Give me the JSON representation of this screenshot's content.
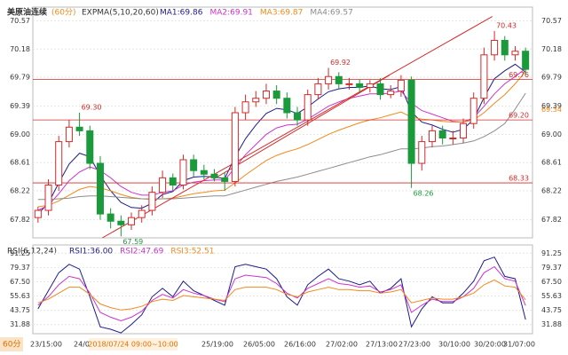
{
  "chart_data": [
    {
      "type": "candlestick",
      "title": "美原油连续",
      "subtitle": "(60分)",
      "indicator": "EXPMA(5,10,20,60)",
      "up_color": "#d42a2a",
      "down_color": "#1a9a3a",
      "open": [
        67.85,
        67.95,
        68.3,
        68.9,
        69.1,
        69.05,
        68.6,
        67.9,
        67.8,
        67.75,
        67.85,
        67.95,
        68.2,
        68.4,
        68.3,
        68.65,
        68.5,
        68.45,
        68.4,
        68.35,
        69.3,
        69.45,
        69.5,
        69.6,
        69.5,
        69.3,
        69.2,
        69.55,
        69.7,
        69.8,
        69.7,
        69.7,
        69.65,
        69.7,
        69.55,
        69.6,
        69.75,
        68.6,
        68.9,
        69.05,
        68.95,
        68.95,
        69.15,
        69.5,
        70.1,
        70.3,
        70.1,
        70.15
      ],
      "high": [
        68.0,
        68.38,
        68.98,
        69.2,
        69.3,
        69.12,
        68.7,
        67.98,
        67.88,
        67.92,
        68.02,
        68.28,
        68.5,
        68.46,
        68.72,
        68.72,
        68.58,
        68.52,
        68.48,
        69.38,
        69.55,
        69.6,
        69.7,
        69.68,
        69.58,
        69.38,
        69.62,
        69.78,
        69.92,
        69.86,
        69.78,
        69.76,
        69.75,
        69.78,
        69.68,
        69.82,
        69.8,
        68.98,
        69.12,
        69.12,
        69.05,
        69.22,
        69.58,
        70.2,
        70.43,
        70.36,
        70.22,
        70.2
      ],
      "low": [
        67.78,
        67.88,
        68.22,
        68.82,
        68.98,
        68.52,
        67.82,
        67.7,
        67.59,
        67.68,
        67.78,
        67.88,
        68.12,
        68.22,
        68.24,
        68.42,
        68.38,
        68.35,
        68.22,
        68.28,
        69.2,
        69.38,
        69.42,
        69.42,
        69.22,
        69.12,
        69.12,
        69.48,
        69.62,
        69.62,
        69.62,
        69.58,
        69.58,
        69.48,
        69.5,
        69.52,
        68.26,
        68.5,
        68.82,
        68.86,
        68.86,
        68.88,
        69.08,
        69.42,
        70.02,
        70.02,
        70.02,
        69.82
      ],
      "close": [
        67.95,
        68.3,
        68.9,
        69.1,
        69.05,
        68.6,
        67.9,
        67.8,
        67.75,
        67.85,
        67.95,
        68.2,
        68.4,
        68.3,
        68.65,
        68.5,
        68.45,
        68.4,
        68.35,
        69.3,
        69.45,
        69.5,
        69.6,
        69.5,
        69.3,
        69.2,
        69.55,
        69.7,
        69.8,
        69.7,
        69.7,
        69.65,
        69.7,
        69.55,
        69.6,
        69.75,
        68.6,
        68.9,
        69.05,
        68.95,
        68.95,
        69.15,
        69.5,
        70.1,
        70.3,
        70.1,
        70.15,
        69.9
      ],
      "series": [
        {
          "name": "MA1:69.86",
          "color": "#1c1c8c",
          "values": [
            67.9,
            68.05,
            68.33,
            68.59,
            68.74,
            68.69,
            68.43,
            68.22,
            68.06,
            67.99,
            67.98,
            68.05,
            68.17,
            68.21,
            68.36,
            68.41,
            68.42,
            68.41,
            68.39,
            68.69,
            68.94,
            69.13,
            69.29,
            69.36,
            69.34,
            69.29,
            69.38,
            69.49,
            69.59,
            69.63,
            69.65,
            69.65,
            69.67,
            69.63,
            69.62,
            69.66,
            69.31,
            69.17,
            69.13,
            69.07,
            69.03,
            69.07,
            69.21,
            69.51,
            69.77,
            69.88,
            69.97,
            69.86
          ]
        },
        {
          "name": "MA2:69.91",
          "color": "#cc33cc",
          "values": [
            67.95,
            68.02,
            68.18,
            68.36,
            68.48,
            68.55,
            68.5,
            68.4,
            68.28,
            68.2,
            68.16,
            68.16,
            68.2,
            68.22,
            68.3,
            68.34,
            68.36,
            68.37,
            68.37,
            68.54,
            68.72,
            68.86,
            69.0,
            69.09,
            69.13,
            69.14,
            69.21,
            69.3,
            69.39,
            69.45,
            69.5,
            69.53,
            69.56,
            69.56,
            69.57,
            69.6,
            69.43,
            69.33,
            69.28,
            69.23,
            69.18,
            69.17,
            69.23,
            69.39,
            69.56,
            69.7,
            69.8,
            69.91
          ]
        },
        {
          "name": "MA3:69.87",
          "color": "#f08a1c",
          "values": [
            68.0,
            68.02,
            68.08,
            68.16,
            68.24,
            68.28,
            68.26,
            68.22,
            68.17,
            68.13,
            68.11,
            68.1,
            68.11,
            68.12,
            68.15,
            68.18,
            68.2,
            68.22,
            68.23,
            68.33,
            68.44,
            68.54,
            68.64,
            68.71,
            68.76,
            68.8,
            68.86,
            68.93,
            69.0,
            69.06,
            69.11,
            69.16,
            69.2,
            69.23,
            69.27,
            69.31,
            69.24,
            69.21,
            69.2,
            69.18,
            69.17,
            69.17,
            69.2,
            69.3,
            69.43,
            69.55,
            69.7,
            69.87
          ]
        },
        {
          "name": "MA4:69.57",
          "color": "#8c8c8c",
          "values": [
            68.1,
            68.1,
            68.11,
            68.12,
            68.14,
            68.15,
            68.15,
            68.14,
            68.13,
            68.12,
            68.11,
            68.11,
            68.11,
            68.11,
            68.12,
            68.13,
            68.14,
            68.15,
            68.15,
            68.19,
            68.23,
            68.27,
            68.31,
            68.35,
            68.38,
            68.41,
            68.45,
            68.49,
            68.53,
            68.57,
            68.61,
            68.65,
            68.69,
            68.72,
            68.76,
            68.8,
            68.8,
            68.81,
            68.83,
            68.84,
            68.86,
            68.88,
            68.91,
            68.97,
            69.05,
            69.15,
            69.35,
            69.57
          ]
        }
      ],
      "annotations": [
        {
          "index": 4,
          "value": 69.3,
          "label": "69.30"
        },
        {
          "index": 8,
          "value": 67.59,
          "label": "67.59"
        },
        {
          "index": 28,
          "value": 69.92,
          "label": "69.92"
        },
        {
          "index": 36,
          "value": 68.26,
          "label": "68.26"
        },
        {
          "index": 44,
          "value": 70.43,
          "label": "70.43"
        }
      ],
      "hlines": [
        {
          "value": 69.76,
          "label": "69.76",
          "color": "#d42a2a"
        },
        {
          "value": 69.2,
          "label": "69.20",
          "color": "#d42a2a"
        },
        {
          "value": 68.33,
          "label": "68.33",
          "color": "#d42a2a"
        }
      ],
      "tags": [
        {
          "value": 69.34,
          "label": "69.34",
          "color": "#f08a1c"
        }
      ],
      "trendlines": [
        {
          "from": [
            6.2,
            67.57
          ],
          "to": [
            43.8,
            70.63
          ],
          "color": "#d42a2a"
        },
        {
          "from": [
            16.9,
            68.38
          ],
          "to": [
            33.9,
            69.82
          ],
          "color": "#d42a2a"
        }
      ],
      "ylim": [
        67.57,
        70.76
      ],
      "yticks": [
        70.57,
        70.18,
        69.79,
        69.39,
        {
          "value": 69,
          "label": "69.00"
        },
        68.61,
        68.22,
        67.82
      ],
      "x_labels": [
        "23/15:00",
        "24/01:00",
        "2018/07/24 09:00~10:00",
        "25/19:00",
        "26/05:00",
        "26/16:00",
        "27/02:00",
        "27/13:00",
        "27/23:00",
        "30/10:00",
        "30/20:00",
        "31/07:00"
      ],
      "period": "60分"
    },
    {
      "type": "line",
      "title": "RSI(6,12,24)",
      "series": [
        {
          "name": "RSI1:36.00",
          "color": "#1c1c8c",
          "values": [
            45,
            60,
            75,
            82,
            78,
            55,
            30,
            28,
            25,
            32,
            40,
            55,
            62,
            55,
            68,
            60,
            56,
            52,
            48,
            80,
            82,
            80,
            78,
            70,
            55,
            48,
            65,
            72,
            78,
            70,
            68,
            65,
            68,
            58,
            62,
            70,
            30,
            45,
            55,
            50,
            50,
            58,
            68,
            85,
            88,
            72,
            70,
            36
          ]
        },
        {
          "name": "RSI2:47.69",
          "color": "#cc33cc",
          "values": [
            48,
            55,
            65,
            72,
            70,
            58,
            42,
            38,
            35,
            38,
            43,
            52,
            57,
            54,
            61,
            58,
            56,
            53,
            51,
            70,
            73,
            72,
            71,
            66,
            58,
            54,
            62,
            66,
            70,
            66,
            65,
            63,
            64,
            59,
            61,
            65,
            42,
            48,
            53,
            51,
            51,
            55,
            62,
            75,
            80,
            70,
            68,
            47.69
          ]
        },
        {
          "name": "RSI3:52.51",
          "color": "#f08a1c",
          "values": [
            50,
            53,
            58,
            63,
            63,
            57,
            49,
            46,
            44,
            45,
            47,
            51,
            53,
            52,
            56,
            55,
            54,
            53,
            52,
            61,
            63,
            63,
            63,
            61,
            57,
            55,
            59,
            61,
            63,
            61,
            61,
            60,
            60,
            58,
            59,
            61,
            50,
            52,
            54,
            53,
            53,
            55,
            58,
            65,
            69,
            64,
            63,
            52.51
          ]
        }
      ],
      "ylim": [
        24.3,
        98.1
      ],
      "yticks": [
        91.25,
        79.37,
        {
          "value": 67.5,
          "label": "67.50"
        },
        55.63,
        43.75,
        31.88
      ]
    }
  ]
}
